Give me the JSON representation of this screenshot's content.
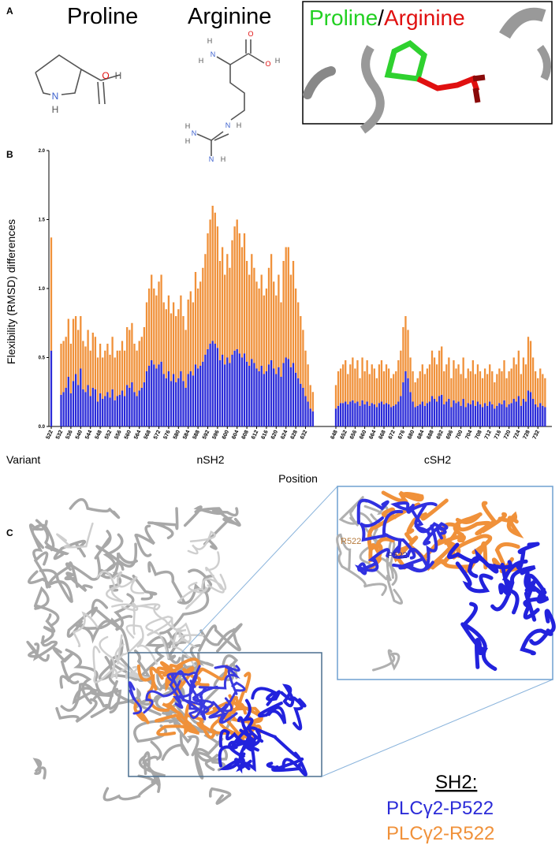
{
  "panels": {
    "a": "A",
    "b": "B",
    "c": "C"
  },
  "panel_a": {
    "molecules": [
      {
        "name": "Proline",
        "atoms": [
          "O",
          "H",
          "N",
          "H"
        ]
      },
      {
        "name": "Arginine",
        "atoms": [
          "H",
          "N",
          "H",
          "O",
          "O",
          "H",
          "N",
          "H",
          "H",
          "N",
          "H",
          "N",
          "H"
        ]
      }
    ],
    "inset_title": [
      "Proline",
      "/",
      "Arginine"
    ]
  },
  "chart_data": {
    "type": "bar",
    "stacked": true,
    "y_label": "Flexibility (RMSD) differences",
    "x_label": "Position",
    "ylim": [
      0,
      2
    ],
    "yticks": [
      {
        "value": 0,
        "label": "0.0"
      },
      0.5,
      {
        "value": 1,
        "label": "1.0"
      },
      1.5,
      {
        "value": 2,
        "label": "2.0"
      }
    ],
    "groups": [
      {
        "name": "Variant",
        "categories": [
          "522"
        ]
      },
      {
        "name": "nSH2",
        "categories": [
          "532",
          null,
          null,
          null,
          "536",
          null,
          null,
          null,
          "540",
          null,
          null,
          null,
          "544",
          null,
          null,
          null,
          "548",
          null,
          null,
          null,
          "552",
          null,
          null,
          null,
          "556",
          null,
          null,
          null,
          "560",
          null,
          null,
          null,
          "564",
          null,
          null,
          null,
          "568",
          null,
          null,
          null,
          "572",
          null,
          null,
          null,
          "576",
          null,
          null,
          null,
          "580",
          null,
          null,
          null,
          "584",
          null,
          null,
          null,
          "588",
          null,
          null,
          null,
          "592",
          null,
          null,
          null,
          "596",
          null,
          null,
          null,
          "600",
          null,
          null,
          null,
          "604",
          null,
          null,
          null,
          "608",
          null,
          null,
          null,
          "612",
          null,
          null,
          null,
          "616",
          null,
          null,
          null,
          "620",
          null,
          null,
          null,
          "624",
          null,
          null,
          null,
          "628",
          null,
          null,
          null,
          "632",
          null,
          null,
          null
        ]
      },
      {
        "name": "cSH2",
        "categories": [
          "648",
          null,
          null,
          null,
          "652",
          null,
          null,
          null,
          "656",
          null,
          null,
          null,
          "660",
          null,
          null,
          null,
          "664",
          null,
          null,
          null,
          "668",
          null,
          null,
          null,
          "672",
          null,
          null,
          null,
          "676",
          null,
          null,
          null,
          "680",
          null,
          null,
          null,
          "684",
          null,
          null,
          null,
          "688",
          null,
          null,
          null,
          "692",
          null,
          null,
          null,
          "696",
          null,
          null,
          null,
          "700",
          null,
          null,
          null,
          "704",
          null,
          null,
          null,
          "708",
          null,
          null,
          null,
          "712",
          null,
          null,
          null,
          "716",
          null,
          null,
          null,
          "720",
          null,
          null,
          null,
          "724",
          null,
          null,
          null,
          "728",
          null,
          null,
          null,
          "732",
          null,
          null,
          null
        ]
      }
    ],
    "series": [
      {
        "name": "PLCγ2-P522",
        "color": "#2b2bd8",
        "values": [
          0.55,
          0.23,
          0.25,
          0.28,
          0.36,
          0.24,
          0.33,
          0.38,
          0.3,
          0.42,
          0.27,
          0.25,
          0.3,
          0.22,
          0.28,
          0.27,
          0.18,
          0.24,
          0.2,
          0.22,
          0.25,
          0.21,
          0.27,
          0.19,
          0.22,
          0.23,
          0.26,
          0.22,
          0.3,
          0.28,
          0.32,
          0.25,
          0.22,
          0.26,
          0.28,
          0.32,
          0.4,
          0.44,
          0.48,
          0.45,
          0.42,
          0.45,
          0.47,
          0.38,
          0.35,
          0.4,
          0.33,
          0.38,
          0.32,
          0.35,
          0.4,
          0.33,
          0.28,
          0.38,
          0.4,
          0.37,
          0.45,
          0.42,
          0.44,
          0.47,
          0.52,
          0.56,
          0.6,
          0.62,
          0.6,
          0.57,
          0.48,
          0.52,
          0.45,
          0.5,
          0.46,
          0.52,
          0.55,
          0.56,
          0.53,
          0.5,
          0.53,
          0.47,
          0.44,
          0.49,
          0.46,
          0.42,
          0.4,
          0.44,
          0.38,
          0.4,
          0.45,
          0.48,
          0.42,
          0.38,
          0.43,
          0.36,
          0.46,
          0.5,
          0.49,
          0.43,
          0.46,
          0.39,
          0.35,
          0.31,
          0.28,
          0.22,
          0.18,
          0.13,
          0.11,
          0.13,
          0.15,
          0.17,
          0.17,
          0.18,
          0.16,
          0.18,
          0.19,
          0.17,
          0.18,
          0.15,
          0.19,
          0.16,
          0.18,
          0.15,
          0.17,
          0.16,
          0.14,
          0.17,
          0.18,
          0.16,
          0.17,
          0.16,
          0.14,
          0.15,
          0.16,
          0.18,
          0.22,
          0.32,
          0.4,
          0.35,
          0.25,
          0.18,
          0.14,
          0.15,
          0.16,
          0.18,
          0.15,
          0.17,
          0.18,
          0.22,
          0.2,
          0.18,
          0.22,
          0.23,
          0.16,
          0.18,
          0.2,
          0.14,
          0.19,
          0.17,
          0.18,
          0.15,
          0.2,
          0.14,
          0.17,
          0.16,
          0.19,
          0.15,
          0.18,
          0.16,
          0.14,
          0.17,
          0.15,
          0.18,
          0.16,
          0.13,
          0.15,
          0.17,
          0.16,
          0.19,
          0.14,
          0.16,
          0.17,
          0.2,
          0.18,
          0.22,
          0.15,
          0.2,
          0.18,
          0.26,
          0.25,
          0.2,
          0.16,
          0.14,
          0.17,
          0.15,
          0.14
        ]
      },
      {
        "name": "PLCγ2-R522",
        "color": "#f0913a",
        "values": [
          0.82,
          0.37,
          0.37,
          0.37,
          0.42,
          0.36,
          0.45,
          0.42,
          0.4,
          0.38,
          0.35,
          0.33,
          0.4,
          0.33,
          0.4,
          0.38,
          0.32,
          0.36,
          0.3,
          0.33,
          0.35,
          0.31,
          0.38,
          0.31,
          0.33,
          0.32,
          0.36,
          0.33,
          0.42,
          0.42,
          0.43,
          0.35,
          0.33,
          0.36,
          0.37,
          0.4,
          0.5,
          0.56,
          0.62,
          0.55,
          0.53,
          0.6,
          0.63,
          0.52,
          0.5,
          0.55,
          0.49,
          0.52,
          0.48,
          0.5,
          0.55,
          0.47,
          0.42,
          0.54,
          0.58,
          0.53,
          0.67,
          0.58,
          0.61,
          0.68,
          0.73,
          0.84,
          0.9,
          0.98,
          0.95,
          0.88,
          0.72,
          0.78,
          0.65,
          0.75,
          0.69,
          0.83,
          0.9,
          0.94,
          0.87,
          0.8,
          0.87,
          0.73,
          0.66,
          0.76,
          0.69,
          0.63,
          0.6,
          0.66,
          0.57,
          0.6,
          0.7,
          0.77,
          0.63,
          0.57,
          0.67,
          0.54,
          0.74,
          0.8,
          0.81,
          0.67,
          0.74,
          0.61,
          0.55,
          0.49,
          0.42,
          0.33,
          0.27,
          0.17,
          0.14,
          0.17,
          0.25,
          0.25,
          0.28,
          0.3,
          0.22,
          0.27,
          0.31,
          0.25,
          0.3,
          0.2,
          0.31,
          0.24,
          0.3,
          0.23,
          0.28,
          0.26,
          0.21,
          0.28,
          0.3,
          0.24,
          0.28,
          0.26,
          0.21,
          0.23,
          0.24,
          0.3,
          0.33,
          0.4,
          0.4,
          0.35,
          0.25,
          0.22,
          0.18,
          0.2,
          0.24,
          0.27,
          0.23,
          0.25,
          0.27,
          0.33,
          0.3,
          0.27,
          0.33,
          0.35,
          0.24,
          0.27,
          0.3,
          0.21,
          0.29,
          0.25,
          0.27,
          0.23,
          0.3,
          0.21,
          0.25,
          0.24,
          0.29,
          0.23,
          0.27,
          0.24,
          0.21,
          0.25,
          0.23,
          0.27,
          0.24,
          0.19,
          0.23,
          0.25,
          0.24,
          0.29,
          0.21,
          0.24,
          0.25,
          0.3,
          0.27,
          0.33,
          0.23,
          0.3,
          0.27,
          0.39,
          0.37,
          0.3,
          0.24,
          0.21,
          0.25,
          0.23,
          0.21
        ]
      }
    ]
  },
  "panel_c": {
    "labels": [
      "R522",
      "P522"
    ],
    "legend_title": "SH2:"
  }
}
